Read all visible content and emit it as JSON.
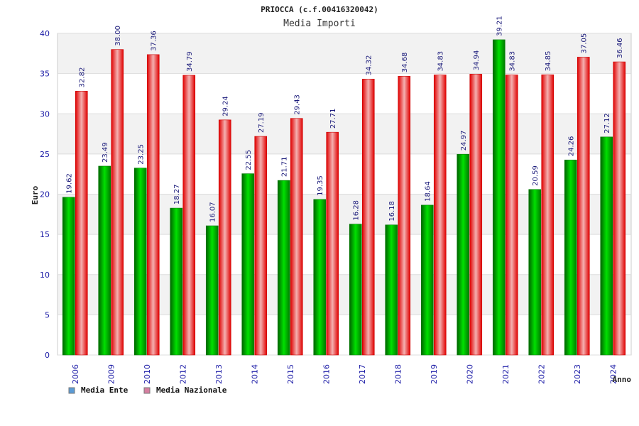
{
  "chart_data": {
    "type": "bar",
    "title": "PRIOCCA (c.f.00416320042)",
    "subtitle": "Media Importi",
    "xlabel": "Anno",
    "ylabel": "Euro",
    "ylim": [
      0,
      40
    ],
    "yticks": [
      0,
      5,
      10,
      15,
      20,
      25,
      30,
      35,
      40
    ],
    "grid": true,
    "legend": "bottom-left",
    "categories": [
      "2006",
      "2009",
      "2010",
      "2012",
      "2013",
      "2014",
      "2015",
      "2016",
      "2017",
      "2018",
      "2019",
      "2020",
      "2021",
      "2022",
      "2023",
      "2024"
    ],
    "series": [
      {
        "name": "Media Ente",
        "color": "#00a000",
        "legend_color": "#5b9bd5",
        "values": [
          19.62,
          23.49,
          23.25,
          18.27,
          16.07,
          22.55,
          21.71,
          19.35,
          16.28,
          16.18,
          18.64,
          24.97,
          39.21,
          20.59,
          24.26,
          27.12
        ],
        "labels": [
          "19.62",
          "23.49",
          "23.25",
          "18.27",
          "16.07",
          "22.55",
          "21.71",
          "19.35",
          "16.28",
          "16.18",
          "18.64",
          "24.97",
          "39.21",
          "20.59",
          "24.26",
          "27.12"
        ]
      },
      {
        "name": "Media Nazionale",
        "color": "#e00000",
        "legend_color": "#d67fa0",
        "values": [
          32.82,
          38.0,
          37.36,
          34.79,
          29.24,
          27.19,
          29.43,
          27.71,
          34.32,
          34.68,
          34.83,
          34.94,
          34.83,
          34.85,
          37.05,
          36.46
        ],
        "labels": [
          "32.82",
          "38.00",
          "37.36",
          "34.79",
          "29.24",
          "27.19",
          "29.43",
          "27.71",
          "34.32",
          "34.68",
          "34.83",
          "34.94",
          "34.83",
          "34.85",
          "37.05",
          "36.46"
        ]
      }
    ]
  }
}
